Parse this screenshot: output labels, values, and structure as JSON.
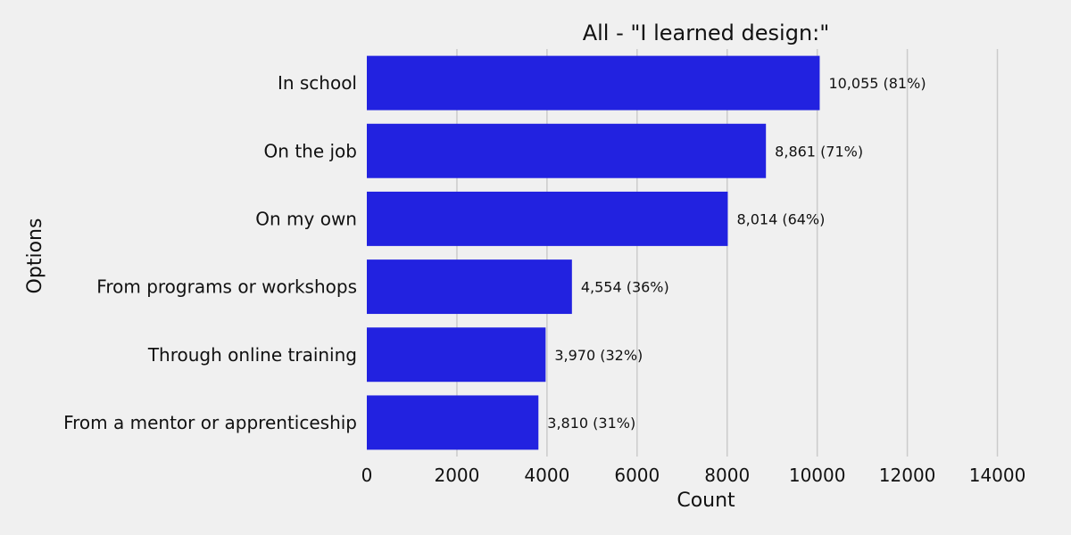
{
  "chart_data": {
    "type": "bar",
    "orientation": "horizontal",
    "title": "All - \"I learned design:\"",
    "xlabel": "Count",
    "ylabel": "Options",
    "categories": [
      "In school",
      "On the job",
      "On my own",
      "From programs or workshops",
      "Through online training",
      "From a mentor or apprenticeship"
    ],
    "values": [
      10055,
      8861,
      8014,
      4554,
      3970,
      3810
    ],
    "data_labels": [
      "10,055 (81%)",
      "8,861 (71%)",
      "8,014 (64%)",
      "4,554 (36%)",
      "3,970 (32%)",
      "3,810 (31%)"
    ],
    "xlim": [
      0,
      15000
    ],
    "xticks": [
      0,
      2000,
      4000,
      6000,
      8000,
      10000,
      12000,
      14000
    ],
    "xtick_labels": [
      "0",
      "2000",
      "4000",
      "6000",
      "8000",
      "10000",
      "12000",
      "14000"
    ],
    "grid": "vertical",
    "bar_color": "#2222e0",
    "background_color": "#f0f0f0",
    "grid_color": "#cbcbcb"
  }
}
